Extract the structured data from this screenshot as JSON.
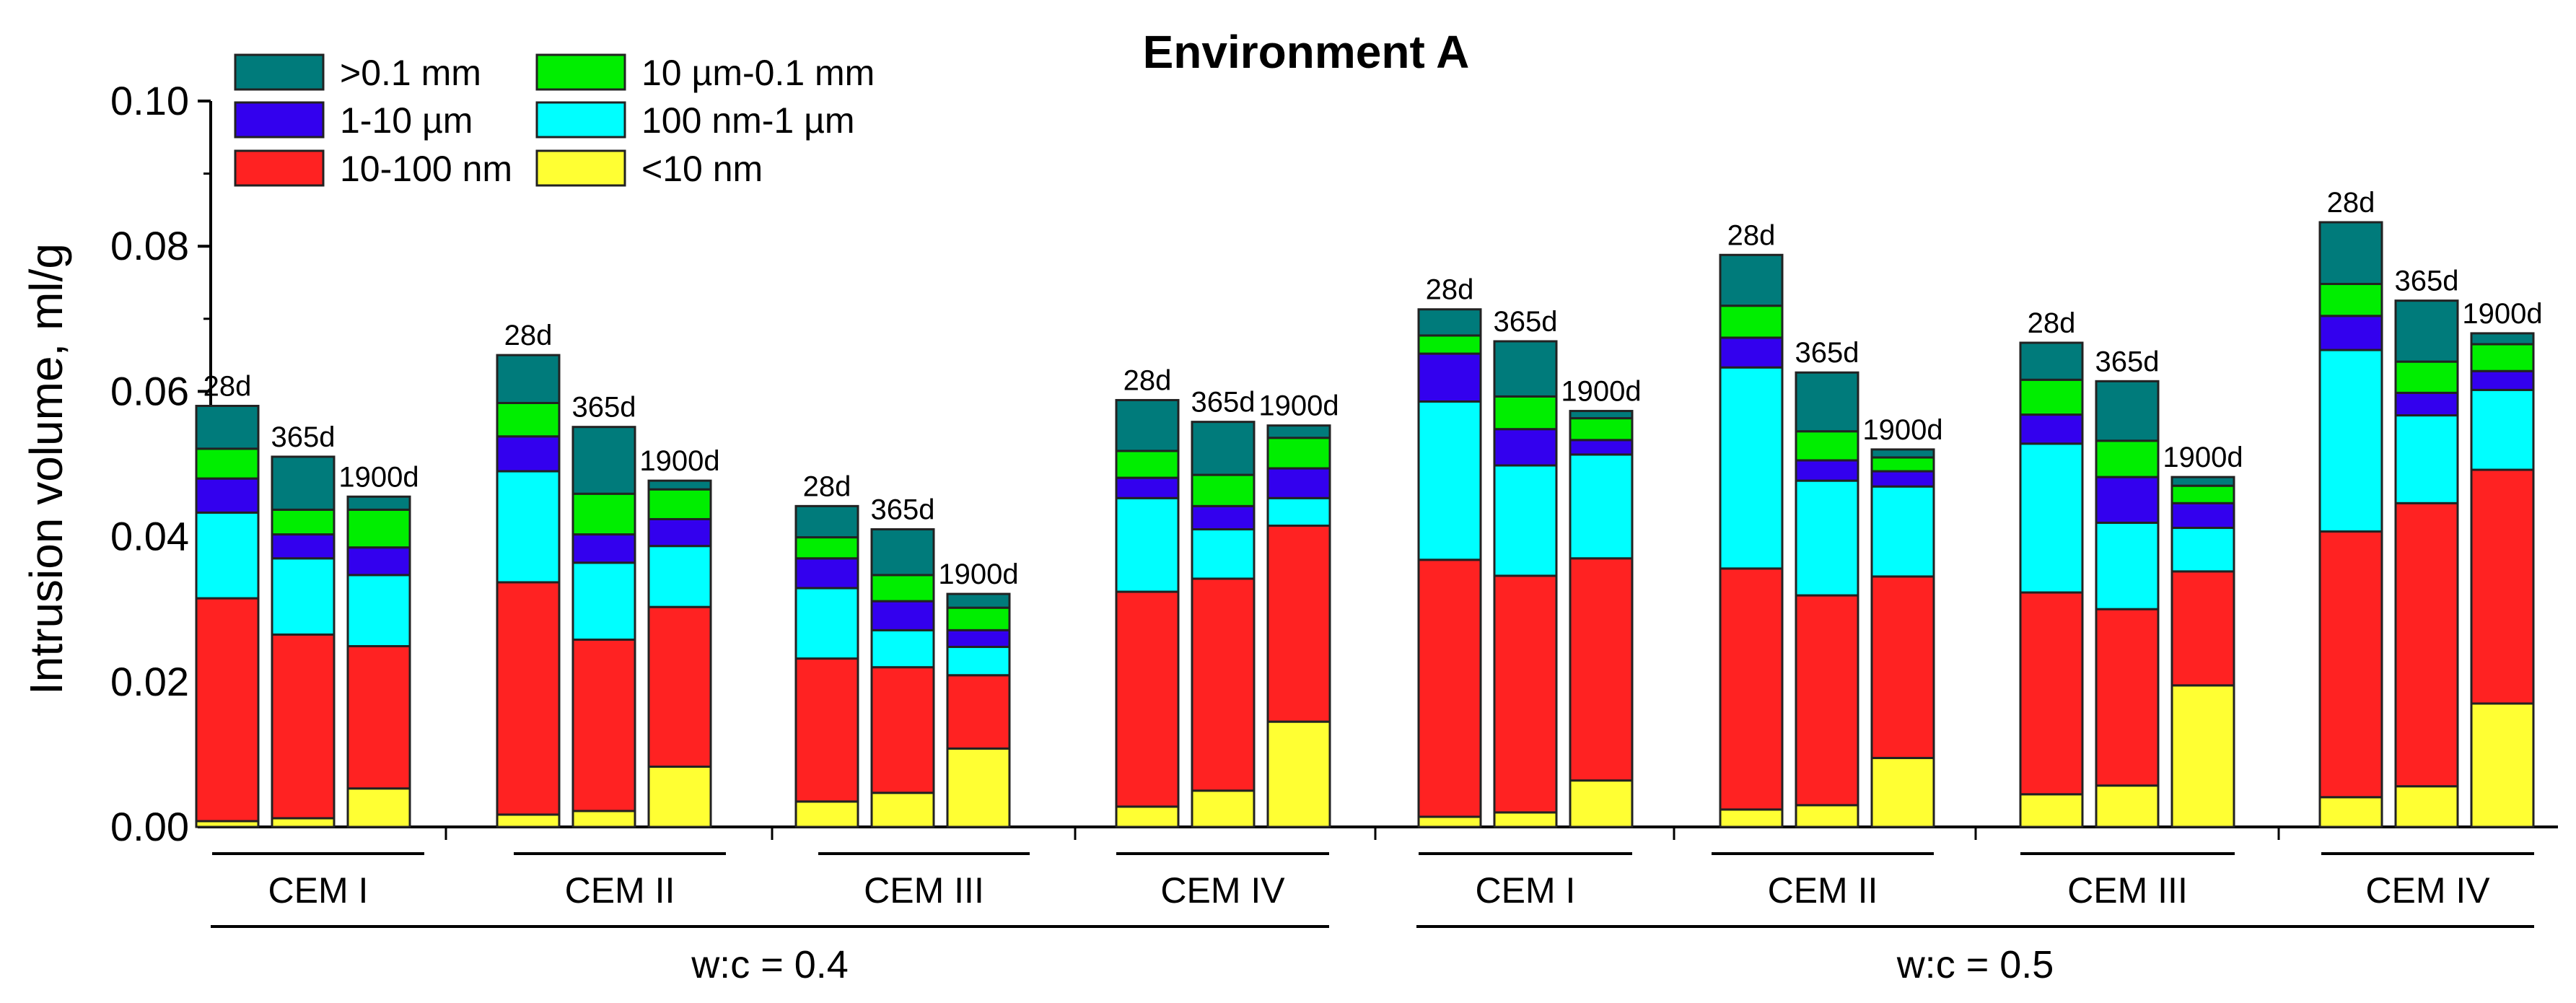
{
  "chart_data": {
    "type": "bar",
    "stacked": true,
    "title": "Environment A",
    "xlabel": "",
    "ylabel": "Intrusion volume, ml/g",
    "ylim": [
      0,
      0.1
    ],
    "yticks": [
      "0.00",
      "0.02",
      "0.04",
      "0.06",
      "0.08",
      "0.10"
    ],
    "grid": false,
    "legend_position": "top-left",
    "series": [
      {
        "name": "<10 nm",
        "color": "#ffff33"
      },
      {
        "name": "10-100 nm",
        "color": "#ff2222"
      },
      {
        "name": "100 nm-1 µm",
        "color": "#00ffff"
      },
      {
        "name": "1-10 µm",
        "color": "#3300ee"
      },
      {
        "name": "10 µm-0.1 mm",
        "color": "#00ee00"
      },
      {
        "name": ">0.1 mm",
        "color": "#007b7b"
      }
    ],
    "legend_order": [
      5,
      4,
      3,
      2,
      1,
      0
    ],
    "wc_groups": [
      {
        "label": "w:c = 0.4",
        "cements": [
          {
            "label": "CEM I",
            "bars": [
              {
                "age": "28d",
                "values": [
                  0.0008,
                  0.0307,
                  0.0118,
                  0.0047,
                  0.0041,
                  0.0059
                ]
              },
              {
                "age": "365d",
                "values": [
                  0.0012,
                  0.0253,
                  0.0105,
                  0.0033,
                  0.0034,
                  0.0073
                ]
              },
              {
                "age": "1900d",
                "values": [
                  0.0053,
                  0.0196,
                  0.0098,
                  0.0038,
                  0.0052,
                  0.0018
                ]
              }
            ]
          },
          {
            "label": "CEM II",
            "bars": [
              {
                "age": "28d",
                "values": [
                  0.0017,
                  0.032,
                  0.0153,
                  0.0048,
                  0.0046,
                  0.0066
                ]
              },
              {
                "age": "365d",
                "values": [
                  0.0022,
                  0.0236,
                  0.0106,
                  0.0039,
                  0.0056,
                  0.0092
                ]
              },
              {
                "age": "1900d",
                "values": [
                  0.0083,
                  0.022,
                  0.0084,
                  0.0037,
                  0.0041,
                  0.0012
                ]
              }
            ]
          },
          {
            "label": "CEM III",
            "bars": [
              {
                "age": "28d",
                "values": [
                  0.0035,
                  0.0197,
                  0.0097,
                  0.0041,
                  0.0029,
                  0.0043
                ]
              },
              {
                "age": "365d",
                "values": [
                  0.0047,
                  0.0173,
                  0.0051,
                  0.004,
                  0.0036,
                  0.0063
                ]
              },
              {
                "age": "1900d",
                "values": [
                  0.0108,
                  0.0101,
                  0.0039,
                  0.0023,
                  0.0031,
                  0.0019
                ]
              }
            ]
          },
          {
            "label": "CEM IV",
            "bars": [
              {
                "age": "28d",
                "values": [
                  0.0028,
                  0.0296,
                  0.0129,
                  0.0028,
                  0.0037,
                  0.007
                ]
              },
              {
                "age": "365d",
                "values": [
                  0.005,
                  0.0292,
                  0.0068,
                  0.0032,
                  0.0043,
                  0.0073
                ]
              },
              {
                "age": "1900d",
                "values": [
                  0.0145,
                  0.027,
                  0.0038,
                  0.0041,
                  0.0042,
                  0.0017
                ]
              }
            ]
          }
        ]
      },
      {
        "label": "w:c = 0.5",
        "cements": [
          {
            "label": "CEM I",
            "bars": [
              {
                "age": "28d",
                "values": [
                  0.0014,
                  0.0354,
                  0.0218,
                  0.0066,
                  0.0025,
                  0.0036
                ]
              },
              {
                "age": "365d",
                "values": [
                  0.002,
                  0.0326,
                  0.0152,
                  0.005,
                  0.0045,
                  0.0076
                ]
              },
              {
                "age": "1900d",
                "values": [
                  0.0064,
                  0.0306,
                  0.0143,
                  0.002,
                  0.003,
                  0.001
                ]
              }
            ]
          },
          {
            "label": "CEM II",
            "bars": [
              {
                "age": "28d",
                "values": [
                  0.0024,
                  0.0332,
                  0.0277,
                  0.0041,
                  0.0044,
                  0.007
                ]
              },
              {
                "age": "365d",
                "values": [
                  0.003,
                  0.0289,
                  0.0158,
                  0.0028,
                  0.004,
                  0.0081
                ]
              },
              {
                "age": "1900d",
                "values": [
                  0.0095,
                  0.025,
                  0.0124,
                  0.0021,
                  0.0019,
                  0.0011
                ]
              }
            ]
          },
          {
            "label": "CEM III",
            "bars": [
              {
                "age": "28d",
                "values": [
                  0.0045,
                  0.0278,
                  0.0205,
                  0.004,
                  0.0048,
                  0.0051
                ]
              },
              {
                "age": "365d",
                "values": [
                  0.0057,
                  0.0243,
                  0.0119,
                  0.0063,
                  0.005,
                  0.0082
                ]
              },
              {
                "age": "1900d",
                "values": [
                  0.0195,
                  0.0157,
                  0.006,
                  0.0034,
                  0.0024,
                  0.0012
                ]
              }
            ]
          },
          {
            "label": "CEM IV",
            "bars": [
              {
                "age": "28d",
                "values": [
                  0.0041,
                  0.0366,
                  0.025,
                  0.0047,
                  0.0044,
                  0.0085
                ]
              },
              {
                "age": "365d",
                "values": [
                  0.0056,
                  0.039,
                  0.0121,
                  0.0031,
                  0.0043,
                  0.0084
                ]
              },
              {
                "age": "1900d",
                "values": [
                  0.017,
                  0.0322,
                  0.011,
                  0.0026,
                  0.0037,
                  0.0015
                ]
              }
            ]
          }
        ]
      }
    ]
  }
}
